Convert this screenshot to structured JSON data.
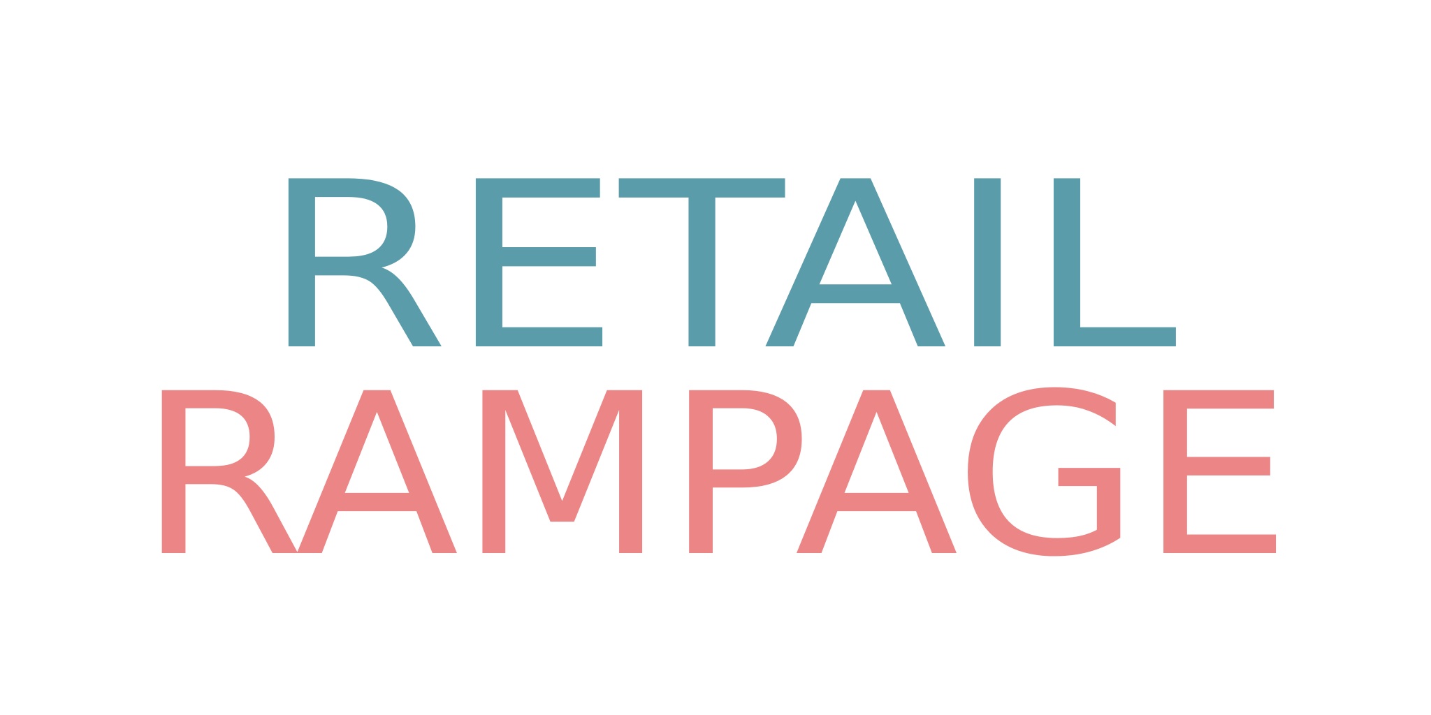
{
  "logo": {
    "line1": "RETAIL",
    "line2": "RAMPAGE",
    "color1": "#5a9caa",
    "color2": "#ec8585"
  }
}
